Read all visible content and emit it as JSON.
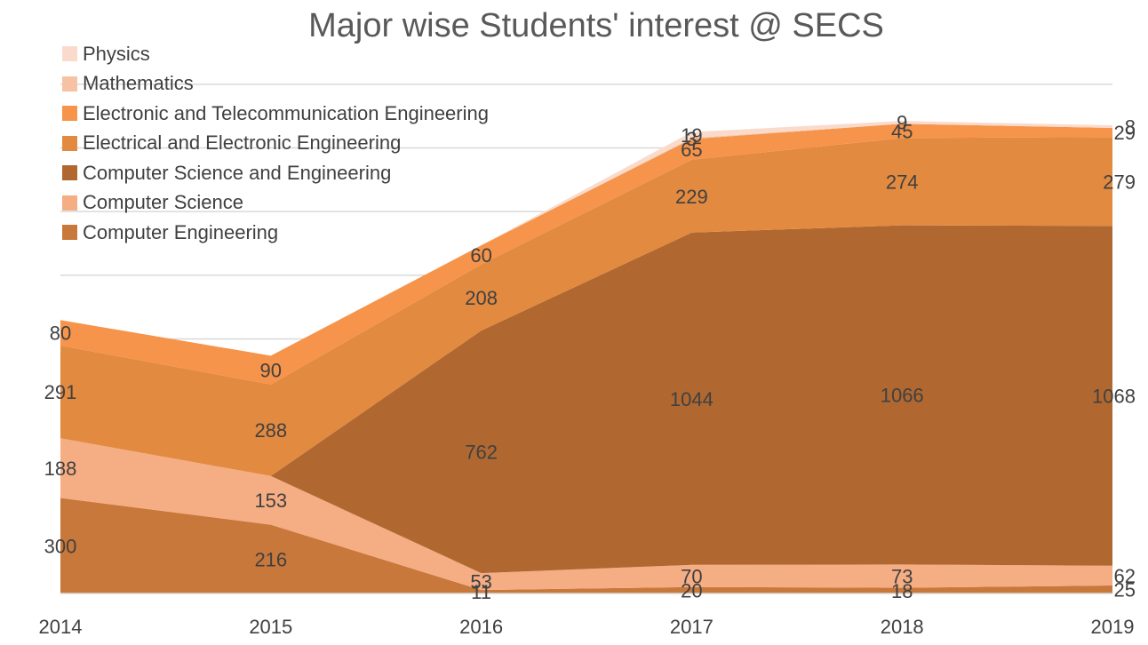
{
  "chart_data": {
    "type": "area",
    "stacked": true,
    "title": "Major wise Students' interest @ SECS",
    "categories": [
      "2014",
      "2015",
      "2016",
      "2017",
      "2018",
      "2019"
    ],
    "series": [
      {
        "name": "Computer Engineering",
        "color": "#C8783A",
        "values": [
          300,
          216,
          11,
          20,
          18,
          25
        ]
      },
      {
        "name": "Computer Science",
        "color": "#F5AD84",
        "values": [
          188,
          153,
          53,
          70,
          73,
          62
        ]
      },
      {
        "name": "Computer Science and Engineering",
        "color": "#B06830",
        "values": [
          0,
          null,
          762,
          1044,
          1066,
          1068
        ]
      },
      {
        "name": "Electrical and Electronic Engineering",
        "color": "#E28A40",
        "values": [
          291,
          288,
          208,
          229,
          274,
          279
        ]
      },
      {
        "name": "Electronic and Telecommunication Engineering",
        "color": "#F5944A",
        "values": [
          80,
          90,
          60,
          65,
          45,
          29
        ]
      },
      {
        "name": "Mathematics",
        "color": "#F7C2A4",
        "values": [
          null,
          null,
          null,
          3,
          null,
          null
        ]
      },
      {
        "name": "Physics",
        "color": "#FADBCB",
        "values": [
          null,
          null,
          null,
          19,
          9,
          8
        ]
      }
    ],
    "ylim": [
      0,
      1650
    ],
    "grid": true,
    "legend": "top-left"
  }
}
